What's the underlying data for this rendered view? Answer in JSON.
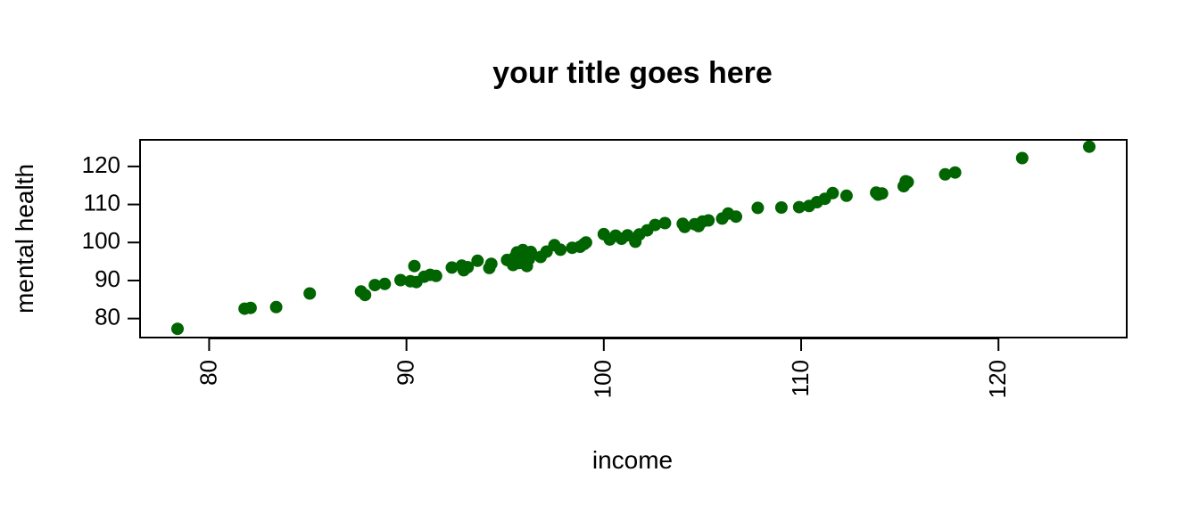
{
  "chart_data": {
    "type": "scatter",
    "title": "your title goes here",
    "xlabel": "income",
    "ylabel": "mental health",
    "xlim": [
      76.5,
      126.5
    ],
    "ylim": [
      75,
      127
    ],
    "xticks": [
      80,
      90,
      100,
      110,
      120
    ],
    "yticks": [
      80,
      90,
      100,
      110,
      120
    ],
    "xtick_labels": [
      "80",
      "90",
      "100",
      "110",
      "120"
    ],
    "ytick_labels": [
      "80",
      "90",
      "100",
      "110",
      "120"
    ],
    "grid": false,
    "marker_color": "#006400",
    "points": [
      [
        78.4,
        77.3
      ],
      [
        81.8,
        82.6
      ],
      [
        82.1,
        82.8
      ],
      [
        83.4,
        83.0
      ],
      [
        85.1,
        86.6
      ],
      [
        87.7,
        87.1
      ],
      [
        87.9,
        86.2
      ],
      [
        88.4,
        88.8
      ],
      [
        88.9,
        89.1
      ],
      [
        89.7,
        90.1
      ],
      [
        90.2,
        89.8
      ],
      [
        90.4,
        93.8
      ],
      [
        90.5,
        89.6
      ],
      [
        90.9,
        91.0
      ],
      [
        91.2,
        91.5
      ],
      [
        91.5,
        91.2
      ],
      [
        92.3,
        93.4
      ],
      [
        92.8,
        93.9
      ],
      [
        92.9,
        92.7
      ],
      [
        93.1,
        93.5
      ],
      [
        93.6,
        95.2
      ],
      [
        94.2,
        93.3
      ],
      [
        94.3,
        94.4
      ],
      [
        95.1,
        95.4
      ],
      [
        95.4,
        94.1
      ],
      [
        95.5,
        96.2
      ],
      [
        95.6,
        97.4
      ],
      [
        95.7,
        94.6
      ],
      [
        95.8,
        96.8
      ],
      [
        95.9,
        98.0
      ],
      [
        96.1,
        93.8
      ],
      [
        96.2,
        95.6
      ],
      [
        96.3,
        97.5
      ],
      [
        96.8,
        96.2
      ],
      [
        97.1,
        97.6
      ],
      [
        97.5,
        99.3
      ],
      [
        97.8,
        98.1
      ],
      [
        98.4,
        98.6
      ],
      [
        98.8,
        98.9
      ],
      [
        99.1,
        100.0
      ],
      [
        99.0,
        99.6
      ],
      [
        100.0,
        102.2
      ],
      [
        100.3,
        100.8
      ],
      [
        100.6,
        101.8
      ],
      [
        100.9,
        101.0
      ],
      [
        101.2,
        101.9
      ],
      [
        101.6,
        100.2
      ],
      [
        101.8,
        102.1
      ],
      [
        102.2,
        103.2
      ],
      [
        102.6,
        104.6
      ],
      [
        103.1,
        105.1
      ],
      [
        104.0,
        104.9
      ],
      [
        104.1,
        104.1
      ],
      [
        104.6,
        104.8
      ],
      [
        104.8,
        104.3
      ],
      [
        105.0,
        105.5
      ],
      [
        105.3,
        105.8
      ],
      [
        106.0,
        106.3
      ],
      [
        106.3,
        107.6
      ],
      [
        106.7,
        106.8
      ],
      [
        107.8,
        109.1
      ],
      [
        109.0,
        109.2
      ],
      [
        109.9,
        109.3
      ],
      [
        110.4,
        109.6
      ],
      [
        110.8,
        110.6
      ],
      [
        111.2,
        111.5
      ],
      [
        111.6,
        113.0
      ],
      [
        112.3,
        112.3
      ],
      [
        113.8,
        113.1
      ],
      [
        113.9,
        112.6
      ],
      [
        114.1,
        112.9
      ],
      [
        115.2,
        114.8
      ],
      [
        115.3,
        116.1
      ],
      [
        115.4,
        115.9
      ],
      [
        117.3,
        117.9
      ],
      [
        117.8,
        118.4
      ],
      [
        121.2,
        122.2
      ],
      [
        124.6,
        125.2
      ]
    ]
  }
}
